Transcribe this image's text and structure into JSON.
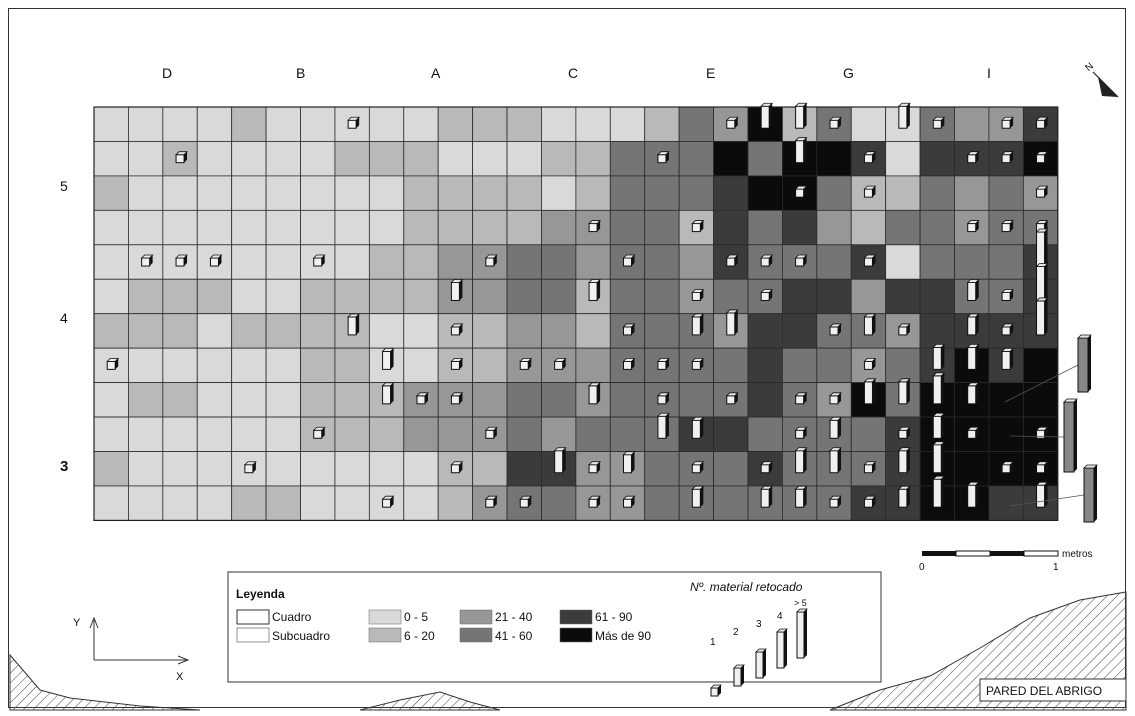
{
  "col_labels": [
    "D",
    "B",
    "A",
    "C",
    "E",
    "G",
    "I"
  ],
  "row_labels": [
    "5",
    "4",
    "3"
  ],
  "legend": {
    "title": "Leyenda",
    "cuadro": "Cuadro",
    "subcuadro": "Subcuadro",
    "classes": [
      {
        "label": "0 - 5",
        "color": "#d9d9d9"
      },
      {
        "label": "6 - 20",
        "color": "#b9b9b9"
      },
      {
        "label": "21 - 40",
        "color": "#979797"
      },
      {
        "label": "41 - 60",
        "color": "#757575"
      },
      {
        "label": "61 - 90",
        "color": "#3b3b3b"
      },
      {
        "label": "Más de 90",
        "color": "#0b0b0b"
      }
    ],
    "retouched_title": "Nº. material retocado",
    "retouched_levels": [
      "1",
      "2",
      "3",
      "4",
      "> 5"
    ]
  },
  "scale": {
    "unit": "metros",
    "start": "0",
    "end": "1"
  },
  "axes": {
    "x": "X",
    "y": "Y"
  },
  "north_label": "N",
  "wall_label": "PARED DEL ABRIGO",
  "grid": {
    "cols": 28,
    "rows": 12,
    "shades": [
      "0000100000111000132513003224",
      "0010000111000113335355404445",
      "1000000001111013334553113232",
      "0000000001111223314342133233",
      "0000000011223323324333403334",
      "0111001111223313323344244334",
      "1110111100112213332443324444",
      "0000001100112223333433234545",
      "0110001112223323333432535555",
      "0000001112223233344333345555",
      "1000000000114422333433345555",
      "0000110000123322333333445544"
    ]
  }
}
